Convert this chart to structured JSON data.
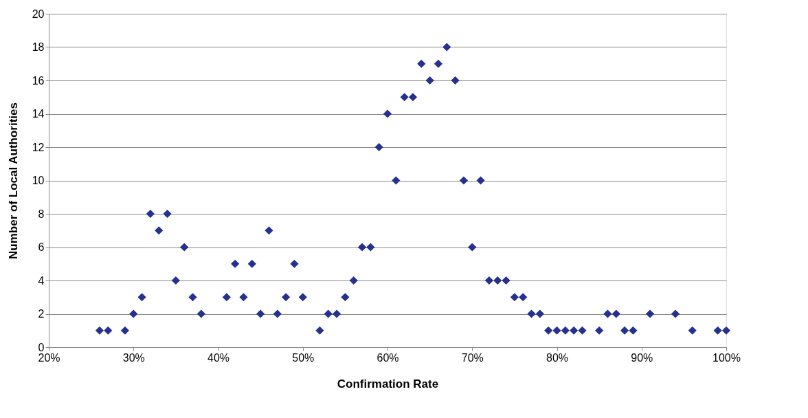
{
  "chart_data": {
    "type": "scatter",
    "xlabel": "Confirmation Rate",
    "ylabel": "Number of Local Authorities",
    "x": [
      26,
      27,
      29,
      30,
      31,
      32,
      33,
      34,
      35,
      36,
      37,
      38,
      41,
      42,
      43,
      44,
      45,
      46,
      47,
      48,
      49,
      50,
      52,
      53,
      54,
      55,
      56,
      57,
      58,
      59,
      60,
      61,
      62,
      63,
      64,
      65,
      66,
      67,
      68,
      69,
      70,
      71,
      72,
      73,
      74,
      75,
      76,
      77,
      78,
      79,
      80,
      81,
      82,
      83,
      85,
      86,
      87,
      88,
      89,
      91,
      94,
      96,
      99,
      100
    ],
    "series": [
      {
        "color": "#26308f",
        "values": [
          1,
          1,
          1,
          2,
          3,
          8,
          7,
          8,
          4,
          6,
          3,
          2,
          3,
          5,
          3,
          5,
          2,
          7,
          2,
          3,
          5,
          3,
          1,
          2,
          2,
          3,
          4,
          6,
          6,
          12,
          14,
          10,
          15,
          15,
          17,
          16,
          17,
          18,
          16,
          10,
          6,
          10,
          4,
          4,
          4,
          3,
          3,
          2,
          2,
          1,
          1,
          1,
          1,
          1,
          1,
          2,
          2,
          1,
          1,
          2,
          2,
          1,
          1,
          1
        ]
      }
    ],
    "xlim": [
      20,
      100
    ],
    "xticks": [
      {
        "value": 20,
        "label": "20%"
      },
      {
        "value": 30,
        "label": "30%"
      },
      {
        "value": 40,
        "label": "40%"
      },
      {
        "value": 50,
        "label": "50%"
      },
      {
        "value": 60,
        "label": "60%"
      },
      {
        "value": 70,
        "label": "70%"
      },
      {
        "value": 80,
        "label": "80%"
      },
      {
        "value": 90,
        "label": "90%"
      },
      {
        "value": 100,
        "label": "100%"
      }
    ],
    "ylim": [
      0,
      20
    ],
    "yticks": [
      0,
      2,
      4,
      6,
      8,
      10,
      12,
      14,
      16,
      18,
      20
    ],
    "grid": "y",
    "marker": "diamond"
  }
}
